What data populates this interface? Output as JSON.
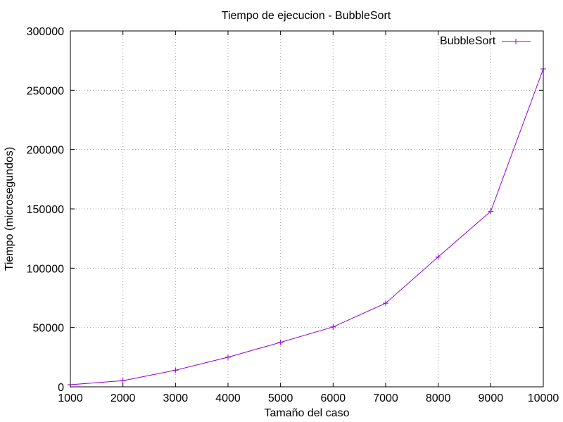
{
  "chart_data": {
    "type": "line",
    "title": "Tiempo de ejecucion - BubbleSort",
    "xlabel": "Tamaño del caso",
    "ylabel": "Tiempo (microsegundos)",
    "x": [
      1000,
      2000,
      3000,
      4000,
      5000,
      6000,
      7000,
      8000,
      9000,
      10000
    ],
    "xlim": [
      1000,
      10000
    ],
    "ylim": [
      0,
      300000
    ],
    "x_ticks": [
      1000,
      2000,
      3000,
      4000,
      5000,
      6000,
      7000,
      8000,
      9000,
      10000
    ],
    "y_ticks": [
      0,
      50000,
      100000,
      150000,
      200000,
      250000,
      300000
    ],
    "grid": true,
    "legend_position": "top-right",
    "series": [
      {
        "name": "BubbleSort",
        "color": "#9400d3",
        "marker": "plus",
        "values": [
          1800,
          5200,
          14000,
          25000,
          37500,
          50500,
          70500,
          109500,
          148000,
          268000
        ]
      }
    ]
  }
}
